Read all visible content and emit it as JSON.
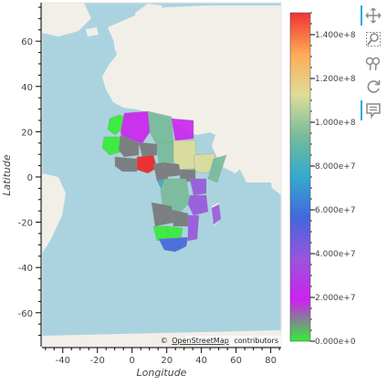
{
  "map": {
    "tile_attribution_prefix": "©",
    "tile_attribution_link": "OpenStreetMap",
    "tile_attribution_suffix": "contributors",
    "ocean_color": "#abd3df",
    "land_color": "#f2efe9"
  },
  "axes": {
    "xlabel": "Longitude",
    "ylabel": "Latitude",
    "xlim": [
      -52,
      86
    ],
    "ylim": [
      -75,
      77
    ],
    "xticks": [
      -40,
      -20,
      0,
      20,
      40,
      60,
      80
    ],
    "yticks": [
      60,
      40,
      20,
      0,
      -20,
      -40,
      -60
    ]
  },
  "colorbar": {
    "min": 0,
    "max": 150000000,
    "tick_labels": [
      "0.000e+0",
      "2.000e+7",
      "4.000e+7",
      "6.000e+7",
      "8.000e+7",
      "1.000e+8",
      "1.200e+8",
      "1.400e+8"
    ],
    "tick_values": [
      0,
      20000000,
      40000000,
      60000000,
      80000000,
      100000000,
      120000000,
      140000000
    ],
    "colors": [
      "#33ee33",
      "#cc22ee",
      "#9955dd",
      "#4466dd",
      "#33aacc",
      "#77bb99",
      "#dddd99",
      "#ffaa55",
      "#ee3333"
    ]
  },
  "toolbar": {
    "tools": [
      {
        "name": "pan-tool",
        "icon": "move-icon",
        "active": true
      },
      {
        "name": "box-zoom-tool",
        "icon": "box-zoom-icon",
        "active": false
      },
      {
        "name": "wheel-zoom-tool",
        "icon": "wheel-zoom-icon",
        "active": false
      },
      {
        "name": "reset-tool",
        "icon": "reset-icon",
        "active": false
      },
      {
        "name": "hover-tool",
        "icon": "hover-icon",
        "active": true
      }
    ]
  }
}
